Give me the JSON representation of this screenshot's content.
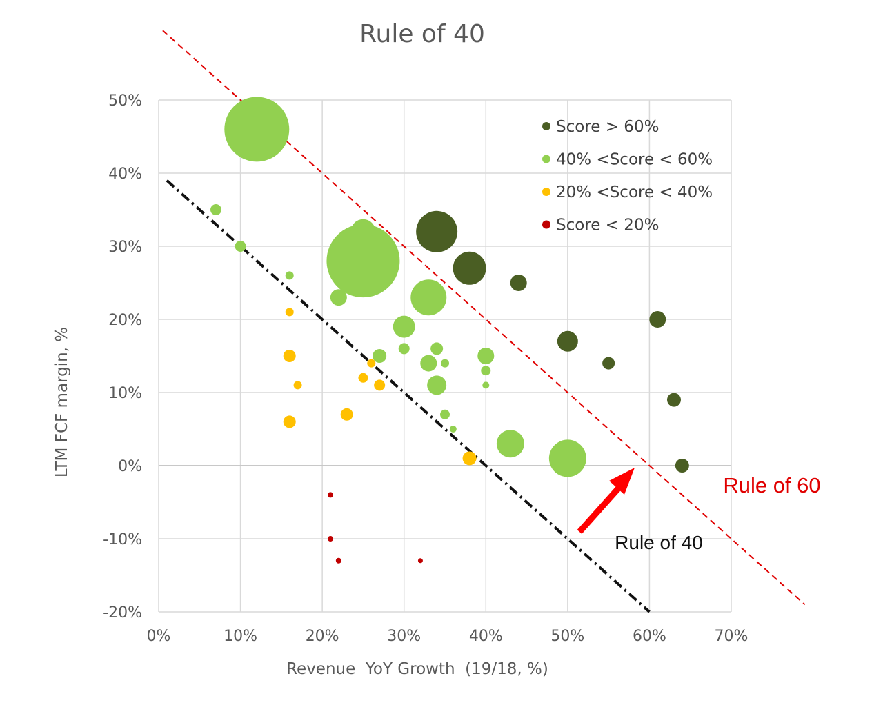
{
  "chart_data": {
    "type": "scatter",
    "subtype": "bubble",
    "title": "Rule of 40",
    "xlabel": "Revenue  YoY Growth  (19/18, %)",
    "ylabel": "LTM FCF margin, %",
    "xlim": [
      0,
      70
    ],
    "ylim": [
      -20,
      50
    ],
    "x_ticks": [
      0,
      10,
      20,
      30,
      40,
      50,
      60,
      70
    ],
    "x_tick_labels": [
      "0%",
      "10%",
      "20%",
      "30%",
      "40%",
      "50%",
      "60%",
      "70%"
    ],
    "y_ticks": [
      50,
      40,
      30,
      20,
      10,
      0,
      -10,
      -20
    ],
    "y_tick_labels": [
      "50%",
      "40%",
      "30%",
      "20%",
      "10%",
      "0%",
      "-10%",
      "-20%"
    ],
    "grid": true,
    "legend_position": "top-right",
    "series": [
      {
        "name": "Score > 60%",
        "color": "#4a5e23",
        "points": [
          {
            "x": 34,
            "y": 32,
            "size": 30
          },
          {
            "x": 38,
            "y": 27,
            "size": 24
          },
          {
            "x": 44,
            "y": 25,
            "size": 12
          },
          {
            "x": 61,
            "y": 20,
            "size": 12
          },
          {
            "x": 50,
            "y": 17,
            "size": 15
          },
          {
            "x": 55,
            "y": 14,
            "size": 9
          },
          {
            "x": 63,
            "y": 9,
            "size": 10
          },
          {
            "x": 64,
            "y": 0,
            "size": 10
          }
        ]
      },
      {
        "name": "40% <Score < 60%",
        "color": "#92d050",
        "points": [
          {
            "x": 12,
            "y": 46,
            "size": 47
          },
          {
            "x": 7,
            "y": 35,
            "size": 8
          },
          {
            "x": 10,
            "y": 30,
            "size": 8
          },
          {
            "x": 25,
            "y": 32,
            "size": 18
          },
          {
            "x": 25,
            "y": 28,
            "size": 53
          },
          {
            "x": 16,
            "y": 26,
            "size": 6
          },
          {
            "x": 22,
            "y": 23,
            "size": 12
          },
          {
            "x": 33,
            "y": 23,
            "size": 26
          },
          {
            "x": 30,
            "y": 19,
            "size": 16
          },
          {
            "x": 30,
            "y": 16,
            "size": 8
          },
          {
            "x": 34,
            "y": 16,
            "size": 9
          },
          {
            "x": 27,
            "y": 15,
            "size": 10
          },
          {
            "x": 40,
            "y": 15,
            "size": 12
          },
          {
            "x": 33,
            "y": 14,
            "size": 12
          },
          {
            "x": 35,
            "y": 14,
            "size": 6
          },
          {
            "x": 40,
            "y": 13,
            "size": 7
          },
          {
            "x": 34,
            "y": 11,
            "size": 14
          },
          {
            "x": 40,
            "y": 11,
            "size": 5
          },
          {
            "x": 35,
            "y": 7,
            "size": 7
          },
          {
            "x": 36,
            "y": 5,
            "size": 5
          },
          {
            "x": 43,
            "y": 3,
            "size": 20
          },
          {
            "x": 50,
            "y": 1,
            "size": 27
          }
        ]
      },
      {
        "name": "20% <Score < 40%",
        "color": "#ffc000",
        "points": [
          {
            "x": 16,
            "y": 21,
            "size": 6
          },
          {
            "x": 16,
            "y": 15,
            "size": 9
          },
          {
            "x": 26,
            "y": 14,
            "size": 6
          },
          {
            "x": 25,
            "y": 12,
            "size": 7
          },
          {
            "x": 17,
            "y": 11,
            "size": 6
          },
          {
            "x": 27,
            "y": 11,
            "size": 8
          },
          {
            "x": 23,
            "y": 7,
            "size": 9
          },
          {
            "x": 16,
            "y": 6,
            "size": 9
          },
          {
            "x": 38,
            "y": 1,
            "size": 10
          }
        ]
      },
      {
        "name": "Score < 20%",
        "color": "#c00000",
        "points": [
          {
            "x": 21,
            "y": -4,
            "size": 4
          },
          {
            "x": 21,
            "y": -10,
            "size": 4
          },
          {
            "x": 22,
            "y": -13,
            "size": 4
          },
          {
            "x": 32,
            "y": -13,
            "size": 3.5
          }
        ]
      }
    ],
    "reference_lines": [
      {
        "label": "Rule of 40",
        "equation": "x + y = 40",
        "color": "#111111",
        "style": "dash-dot"
      },
      {
        "label": "Rule of 60",
        "equation": "x + y = 60",
        "color": "#e00000",
        "style": "dashed"
      }
    ],
    "annotations": [
      {
        "text": "Rule of 40",
        "color": "#111111"
      },
      {
        "text": "Rule of 60",
        "color": "#e00000"
      },
      {
        "type": "arrow",
        "from": "Rule of 40",
        "to": "Rule of 60",
        "color": "#ff0000"
      }
    ]
  }
}
